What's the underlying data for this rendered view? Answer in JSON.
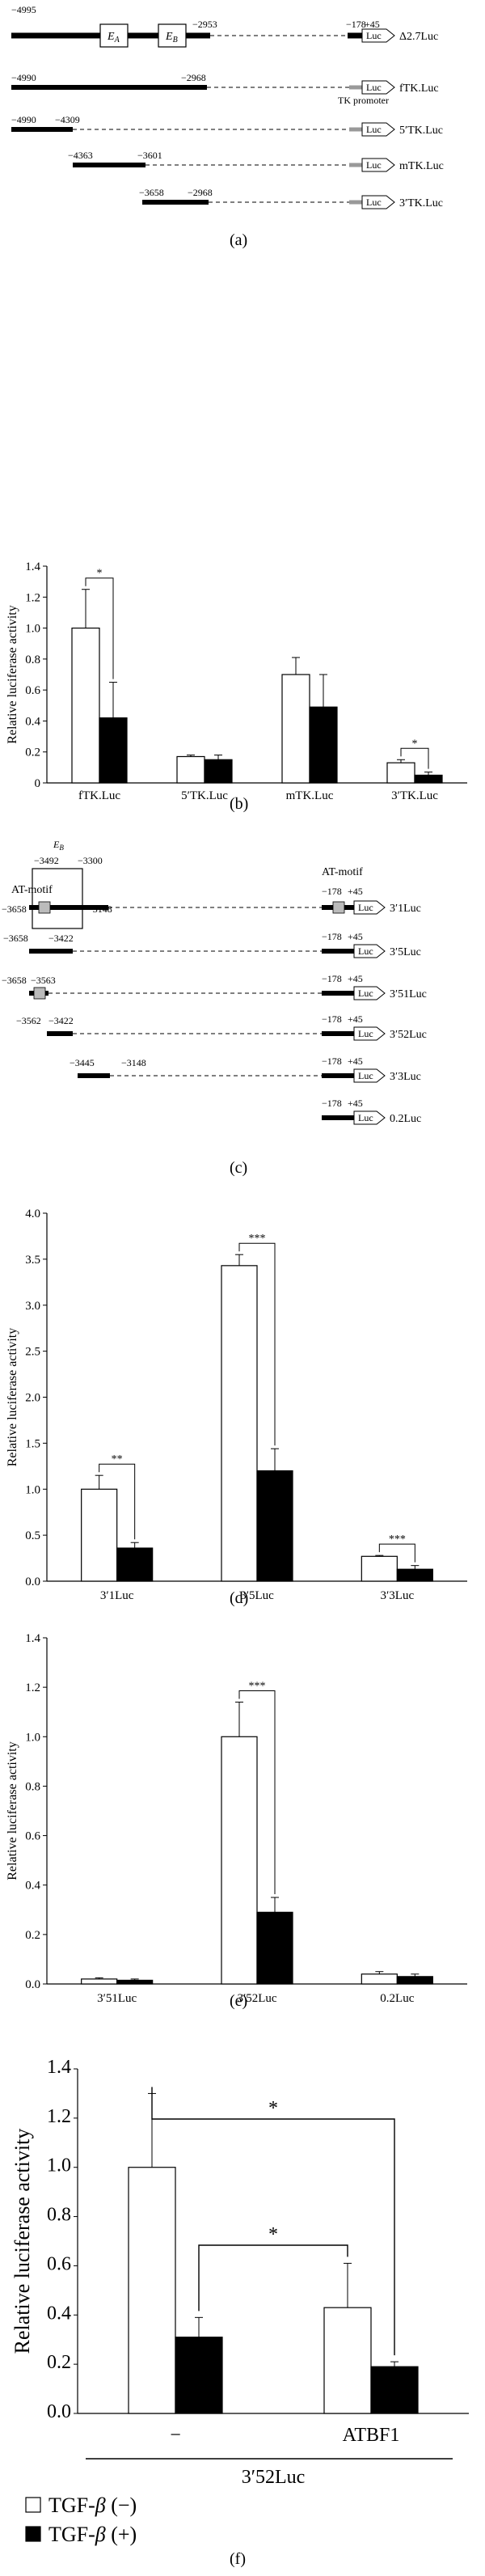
{
  "panel_a": {
    "label": "(a)",
    "constructs": [
      {
        "left": "−4995",
        "right": "−2953",
        "mid_left": "−178",
        "mid_right": "+45",
        "name": "Δ2.7Luc",
        "EA": "E",
        "EA_sub": "A",
        "EB": "E",
        "EB_sub": "B"
      },
      {
        "left": "−4990",
        "right": "−2968",
        "name": "fTK.Luc",
        "promoter": "TK promoter"
      },
      {
        "left": "−4990",
        "right": "−4309",
        "name": "5′TK.Luc"
      },
      {
        "left": "−4363",
        "right": "−3601",
        "name": "mTK.Luc"
      },
      {
        "left": "−3658",
        "right": "−2968",
        "name": "3′TK.Luc"
      }
    ],
    "luc": "Luc"
  },
  "panel_c": {
    "label": "(c)",
    "eb_label": "E",
    "eb_sub": "B",
    "eb_left": "−3492",
    "eb_right": "−3300",
    "at_motif": "AT-motif",
    "constructs": [
      {
        "left": "−3658",
        "right": "−3148",
        "name": "3′1Luc"
      },
      {
        "left": "−3658",
        "right": "−3422",
        "name": "3′5Luc"
      },
      {
        "left": "−3658",
        "right": "−3563",
        "name": "3′51Luc"
      },
      {
        "left": "−3562",
        "right": "−3422",
        "name": "3′52Luc"
      },
      {
        "left": "−3445",
        "right": "−3148",
        "name": "3′3Luc"
      },
      {
        "name": "0.2Luc"
      }
    ],
    "minus178": "−178",
    "plus45": "+45",
    "luc": "Luc"
  },
  "chart_data": [
    {
      "type": "bar",
      "panel": "(b)",
      "categories": [
        "fTK.Luc",
        "5′TK.Luc",
        "mTK.Luc",
        "3′TK.Luc"
      ],
      "series": [
        {
          "values": [
            1.0,
            0.17,
            0.7,
            0.13
          ],
          "errors": [
            0.25,
            0.01,
            0.11,
            0.02
          ],
          "color": "#ffffff"
        },
        {
          "values": [
            0.42,
            0.15,
            0.49,
            0.05
          ],
          "errors": [
            0.23,
            0.03,
            0.21,
            0.02
          ],
          "color": "#000000"
        }
      ],
      "ylabel": "Relative luciferase activity",
      "ylim": [
        0,
        1.4
      ],
      "yticks": [
        "0",
        "0.2",
        "0.4",
        "0.6",
        "0.8",
        "1.0",
        "1.2",
        "1.4"
      ],
      "significance": [
        "*",
        "*"
      ]
    },
    {
      "type": "bar",
      "panel": "(d)",
      "categories": [
        "3′1Luc",
        "3′5Luc",
        "3′3Luc"
      ],
      "series": [
        {
          "values": [
            1.0,
            3.43,
            0.27
          ],
          "errors": [
            0.15,
            0.12,
            0.01
          ],
          "color": "#ffffff"
        },
        {
          "values": [
            0.36,
            1.2,
            0.13
          ],
          "errors": [
            0.06,
            0.24,
            0.04
          ],
          "color": "#000000"
        }
      ],
      "ylabel": "Relative luciferase activity",
      "ylim": [
        0,
        4.0
      ],
      "yticks": [
        "0.0",
        "0.5",
        "1.0",
        "1.5",
        "2.0",
        "2.5",
        "3.0",
        "3.5",
        "4.0"
      ],
      "significance": [
        "**",
        "***",
        "***"
      ]
    },
    {
      "type": "bar",
      "panel": "(e)",
      "categories": [
        "3′51Luc",
        "3′52Luc",
        "0.2Luc"
      ],
      "series": [
        {
          "values": [
            0.02,
            1.0,
            0.04
          ],
          "errors": [
            0.005,
            0.14,
            0.01
          ],
          "color": "#ffffff"
        },
        {
          "values": [
            0.015,
            0.29,
            0.03
          ],
          "errors": [
            0.005,
            0.06,
            0.01
          ],
          "color": "#000000"
        }
      ],
      "ylabel": "Relative luciferase activity",
      "ylim": [
        0,
        1.4
      ],
      "yticks": [
        "0.0",
        "0.2",
        "0.4",
        "0.6",
        "0.8",
        "1.0",
        "1.2",
        "1.4"
      ],
      "significance": [
        "***"
      ]
    },
    {
      "type": "bar",
      "panel": "(f)",
      "categories": [
        "−",
        "ATBF1"
      ],
      "group_label": "3′52Luc",
      "series": [
        {
          "name": "TGF-β (−)",
          "values": [
            1.0,
            0.43
          ],
          "errors": [
            0.3,
            0.18
          ],
          "color": "#ffffff"
        },
        {
          "name": "TGF-β (+)",
          "values": [
            0.31,
            0.19
          ],
          "errors": [
            0.08,
            0.02
          ],
          "color": "#000000"
        }
      ],
      "ylabel": "Relative luciferase activity",
      "ylim": [
        0,
        1.4
      ],
      "yticks": [
        "0.0",
        "0.2",
        "0.4",
        "0.6",
        "0.8",
        "1.0",
        "1.2",
        "1.4"
      ],
      "significance": [
        "*",
        "*"
      ],
      "legend": [
        {
          "text": "TGF-",
          "greek": "β",
          "suffix": " (−)"
        },
        {
          "text": "TGF-",
          "greek": "β",
          "suffix": " (+)"
        }
      ]
    }
  ],
  "labels": {
    "b": "(b)",
    "d": "(d)",
    "e": "(e)",
    "f": "(f)"
  }
}
